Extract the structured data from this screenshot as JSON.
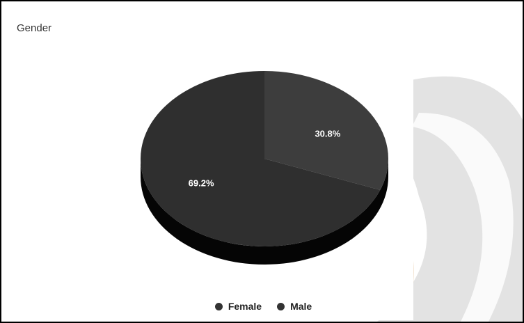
{
  "chart_data": {
    "type": "pie",
    "title": "Gender",
    "legend_position": "bottom",
    "slices": [
      {
        "label": "Female",
        "value": 30.8,
        "display": "30.8%",
        "color": "#3d3d3d"
      },
      {
        "label": "Male",
        "value": 69.2,
        "display": "69.2%",
        "color": "#2f2f2f"
      }
    ],
    "colors": {
      "side": "#050505",
      "label_text": "#ffffff"
    }
  }
}
